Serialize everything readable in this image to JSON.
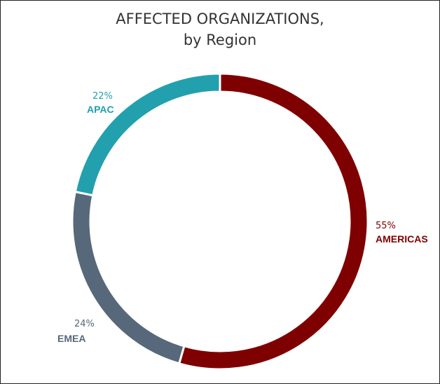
{
  "chart_data": {
    "type": "pie",
    "style": "donut",
    "title": "AFFECTED ORGANIZATIONS,",
    "subtitle": "by Region",
    "slices": [
      {
        "label": "AMERICAS",
        "value": 55,
        "value_label": "55%",
        "color": "#7f0000"
      },
      {
        "label": "EMEA",
        "value": 24,
        "value_label": "24%",
        "color": "#56687a"
      },
      {
        "label": "APAC",
        "value": 22,
        "value_label": "22%",
        "color": "#22a0ae"
      }
    ]
  }
}
